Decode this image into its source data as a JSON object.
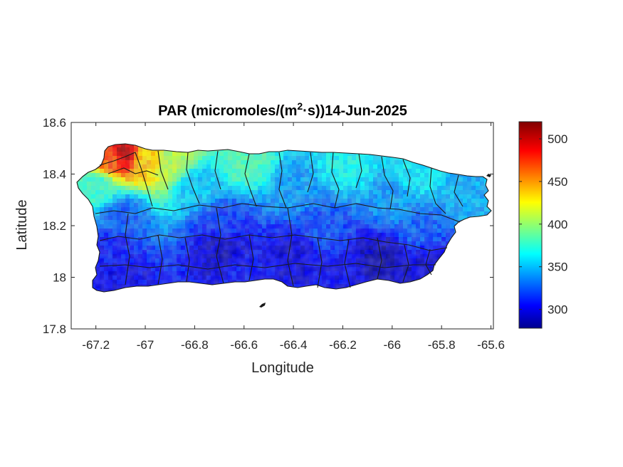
{
  "chart_data": {
    "type": "heatmap",
    "title": {
      "prefix": "PAR (micromoles/(m",
      "superscript": "2",
      "suffix": "·s))14-Jun-2025"
    },
    "xlabel": "Longitude",
    "ylabel": "Latitude",
    "xlim": [
      -67.3,
      -65.59
    ],
    "ylim": [
      17.8,
      18.6
    ],
    "xticks": [
      -67.2,
      -67,
      -66.8,
      -66.6,
      -66.4,
      -66.2,
      -66,
      -65.8,
      -65.6
    ],
    "xtick_labels": [
      "-67.2",
      "-67",
      "-66.8",
      "-66.6",
      "-66.4",
      "-66.2",
      "-66",
      "-65.8",
      "-65.6"
    ],
    "yticks": [
      17.8,
      18,
      18.2,
      18.4,
      18.6
    ],
    "ytick_labels": [
      "17.8",
      "18",
      "18.2",
      "18.4",
      "18.6"
    ],
    "colormap": "jet",
    "colorbar": {
      "limits": [
        278,
        520
      ],
      "ticks": [
        300,
        350,
        400,
        450,
        500
      ],
      "tick_labels": [
        "300",
        "350",
        "400",
        "450",
        "500"
      ]
    },
    "field_samples": [
      {
        "lon": -67.1,
        "lat": 18.49,
        "value": 505
      },
      {
        "lon": -67.15,
        "lat": 18.47,
        "value": 470
      },
      {
        "lon": -67.0,
        "lat": 18.47,
        "value": 440
      },
      {
        "lon": -66.9,
        "lat": 18.46,
        "value": 410
      },
      {
        "lon": -66.6,
        "lat": 18.46,
        "value": 385
      },
      {
        "lon": -66.2,
        "lat": 18.45,
        "value": 370
      },
      {
        "lon": -65.9,
        "lat": 18.4,
        "value": 365
      },
      {
        "lon": -67.2,
        "lat": 18.36,
        "value": 380
      },
      {
        "lon": -66.8,
        "lat": 18.36,
        "value": 355
      },
      {
        "lon": -66.4,
        "lat": 18.35,
        "value": 345
      },
      {
        "lon": -66.0,
        "lat": 18.3,
        "value": 345
      },
      {
        "lon": -65.7,
        "lat": 18.32,
        "value": 350
      },
      {
        "lon": -67.1,
        "lat": 18.25,
        "value": 330
      },
      {
        "lon": -66.7,
        "lat": 18.22,
        "value": 320
      },
      {
        "lon": -66.3,
        "lat": 18.2,
        "value": 325
      },
      {
        "lon": -65.9,
        "lat": 18.2,
        "value": 330
      },
      {
        "lon": -67.15,
        "lat": 18.1,
        "value": 310
      },
      {
        "lon": -66.7,
        "lat": 18.12,
        "value": 295
      },
      {
        "lon": -66.4,
        "lat": 18.1,
        "value": 300
      },
      {
        "lon": -66.05,
        "lat": 18.08,
        "value": 290
      },
      {
        "lon": -65.85,
        "lat": 18.05,
        "value": 300
      },
      {
        "lon": -67.1,
        "lat": 18.0,
        "value": 305
      },
      {
        "lon": -66.6,
        "lat": 18.0,
        "value": 310
      },
      {
        "lon": -66.2,
        "lat": 17.99,
        "value": 305
      },
      {
        "lon": -66.0,
        "lat": 18.0,
        "value": 295
      }
    ],
    "grid": false
  }
}
